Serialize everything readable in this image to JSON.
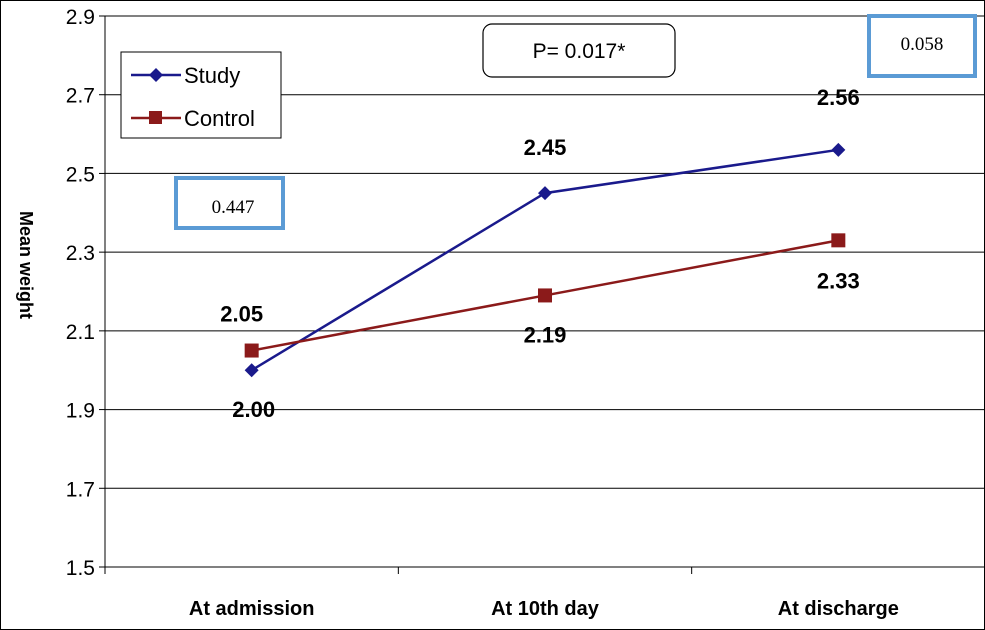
{
  "chart_data": {
    "type": "line",
    "categories": [
      "At admission",
      "At 10th day",
      "At discharge"
    ],
    "series": [
      {
        "name": "Study",
        "values": [
          2.0,
          2.45,
          2.56
        ],
        "labels": [
          "2.00",
          "2.45",
          "2.56"
        ],
        "color": "#1a1a8c",
        "marker": "diamond"
      },
      {
        "name": "Control",
        "values": [
          2.05,
          2.19,
          2.33
        ],
        "labels": [
          "2.05",
          "2.19",
          "2.33"
        ],
        "color": "#8b1a1a",
        "marker": "square"
      }
    ],
    "ylabel": "Mean weight",
    "ylim": [
      1.5,
      2.9
    ],
    "yticks": [
      "1.5",
      "1.7",
      "1.9",
      "2.1",
      "2.3",
      "2.5",
      "2.7",
      "2.9"
    ],
    "grid": true,
    "legend_position": "top-left",
    "annotations": {
      "overall_p": "P= 0.017*",
      "admission_p": "0.447",
      "discharge_p": "0.058"
    },
    "annotation_box_color": "#5b9bd5"
  }
}
